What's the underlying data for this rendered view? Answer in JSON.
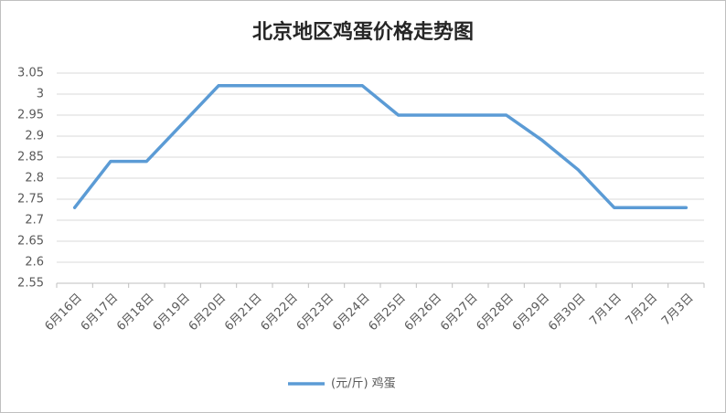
{
  "chart_data": {
    "type": "line",
    "title": "北京地区鸡蛋价格走势图",
    "categories": [
      "6月16日",
      "6月17日",
      "6月18日",
      "6月19日",
      "6月20日",
      "6月21日",
      "6月22日",
      "6月23日",
      "6月24日",
      "6月25日",
      "6月26日",
      "6月27日",
      "6月28日",
      "6月29日",
      "6月30日",
      "7月1日",
      "7月2日",
      "7月3日"
    ],
    "series": [
      {
        "name": "(元/斤) 鸡蛋",
        "color": "#5b9bd5",
        "values": [
          2.73,
          2.84,
          2.84,
          2.93,
          3.02,
          3.02,
          3.02,
          3.02,
          3.02,
          2.95,
          2.95,
          2.95,
          2.95,
          2.89,
          2.82,
          2.73,
          2.73,
          2.73
        ]
      }
    ],
    "ylim": [
      2.55,
      3.05
    ],
    "yticks": [
      2.55,
      2.6,
      2.65,
      2.7,
      2.75,
      2.8,
      2.85,
      2.9,
      2.95,
      3,
      3.05
    ],
    "grid": true,
    "legend": "bottom"
  }
}
